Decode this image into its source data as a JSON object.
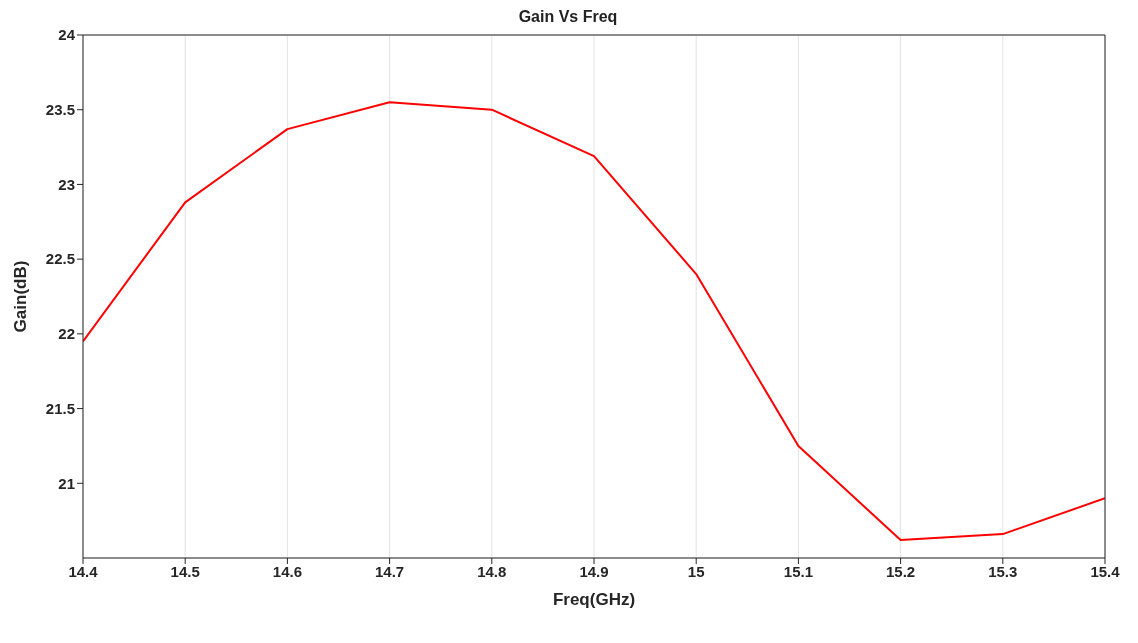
{
  "chart_data": {
    "type": "line",
    "title": "Gain Vs Freq",
    "xlabel": "Freq(GHz)",
    "ylabel": "Gain(dB)",
    "x": [
      14.4,
      14.5,
      14.6,
      14.7,
      14.8,
      14.9,
      15.0,
      15.1,
      15.2,
      15.3,
      15.4
    ],
    "series": [
      {
        "color": "#ff0000",
        "values": [
          21.95,
          22.88,
          23.37,
          23.55,
          23.5,
          23.19,
          22.4,
          21.25,
          20.62,
          20.66,
          20.9
        ]
      }
    ],
    "xlim": [
      14.4,
      15.4
    ],
    "xticks": [
      14.4,
      14.5,
      14.6,
      14.7,
      14.8,
      14.9,
      15,
      15.1,
      15.2,
      15.3,
      15.4
    ],
    "ylim": [
      20.5,
      24
    ],
    "yticks": [
      21,
      21.5,
      22,
      22.5,
      23,
      23.5,
      24
    ],
    "grid": true,
    "marker": "none",
    "line_style": "solid"
  }
}
